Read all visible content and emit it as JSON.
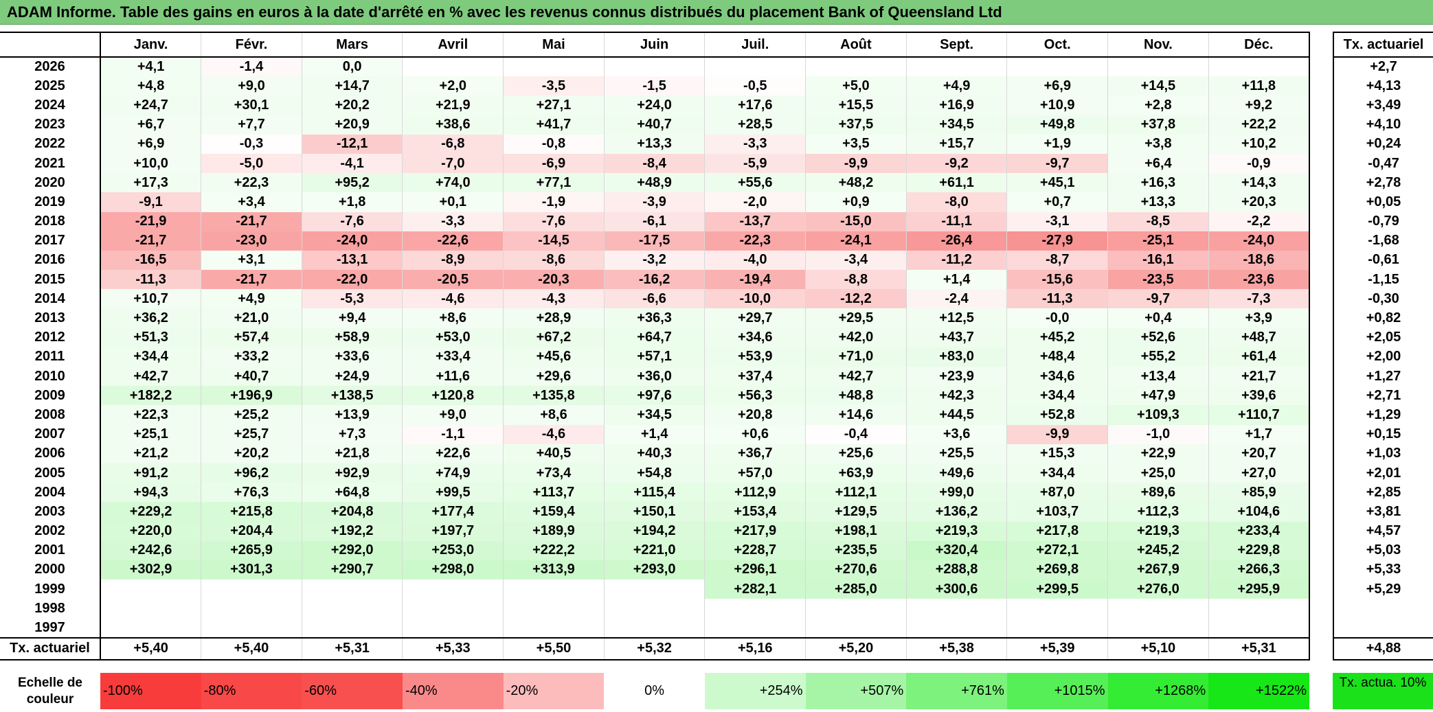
{
  "title": "ADAM Informe. Table des gains en euros à la date d'arrêté en % avec les revenus connus distribués du placement Bank of Queensland Ltd",
  "months": [
    "Janv.",
    "Févr.",
    "Mars",
    "Avril",
    "Mai",
    "Juin",
    "Juil.",
    "Août",
    "Sept.",
    "Oct.",
    "Nov.",
    "Déc."
  ],
  "side_header": "Tx. actuariel",
  "rows": [
    {
      "year": "2026",
      "values": [
        "+4,1",
        "-1,4",
        "0,0",
        "",
        "",
        "",
        "",
        "",
        "",
        "",
        "",
        ""
      ],
      "tx": "+2,7"
    },
    {
      "year": "2025",
      "values": [
        "+4,8",
        "+9,0",
        "+14,7",
        "+2,0",
        "-3,5",
        "-1,5",
        "-0,5",
        "+5,0",
        "+4,9",
        "+6,9",
        "+14,5",
        "+11,8"
      ],
      "tx": "+4,13"
    },
    {
      "year": "2024",
      "values": [
        "+24,7",
        "+30,1",
        "+20,2",
        "+21,9",
        "+27,1",
        "+24,0",
        "+17,6",
        "+15,5",
        "+16,9",
        "+10,9",
        "+2,8",
        "+9,2"
      ],
      "tx": "+3,49"
    },
    {
      "year": "2023",
      "values": [
        "+6,7",
        "+7,7",
        "+20,9",
        "+38,6",
        "+41,7",
        "+40,7",
        "+28,5",
        "+37,5",
        "+34,5",
        "+49,8",
        "+37,8",
        "+22,2"
      ],
      "tx": "+4,10"
    },
    {
      "year": "2022",
      "values": [
        "+6,9",
        "-0,3",
        "-12,1",
        "-6,8",
        "-0,8",
        "+13,3",
        "-3,3",
        "+3,5",
        "+15,7",
        "+1,9",
        "+3,8",
        "+10,2"
      ],
      "tx": "+0,24"
    },
    {
      "year": "2021",
      "values": [
        "+10,0",
        "-5,0",
        "-4,1",
        "-7,0",
        "-6,9",
        "-8,4",
        "-5,9",
        "-9,9",
        "-9,2",
        "-9,7",
        "+6,4",
        "-0,9"
      ],
      "tx": "-0,47"
    },
    {
      "year": "2020",
      "values": [
        "+17,3",
        "+22,3",
        "+95,2",
        "+74,0",
        "+77,1",
        "+48,9",
        "+55,6",
        "+48,2",
        "+61,1",
        "+45,1",
        "+16,3",
        "+14,3"
      ],
      "tx": "+2,78"
    },
    {
      "year": "2019",
      "values": [
        "-9,1",
        "+3,4",
        "+1,8",
        "+0,1",
        "-1,9",
        "-3,9",
        "-2,0",
        "+0,9",
        "-8,0",
        "+0,7",
        "+13,3",
        "+20,3"
      ],
      "tx": "+0,05"
    },
    {
      "year": "2018",
      "values": [
        "-21,9",
        "-21,7",
        "-7,6",
        "-3,3",
        "-7,6",
        "-6,1",
        "-13,7",
        "-15,0",
        "-11,1",
        "-3,1",
        "-8,5",
        "-2,2"
      ],
      "tx": "-0,79"
    },
    {
      "year": "2017",
      "values": [
        "-21,7",
        "-23,0",
        "-24,0",
        "-22,6",
        "-14,5",
        "-17,5",
        "-22,3",
        "-24,1",
        "-26,4",
        "-27,9",
        "-25,1",
        "-24,0"
      ],
      "tx": "-1,68"
    },
    {
      "year": "2016",
      "values": [
        "-16,5",
        "+3,1",
        "-13,1",
        "-8,9",
        "-8,6",
        "-3,2",
        "-4,0",
        "-3,4",
        "-11,2",
        "-8,7",
        "-16,1",
        "-18,6"
      ],
      "tx": "-0,61"
    },
    {
      "year": "2015",
      "values": [
        "-11,3",
        "-21,7",
        "-22,0",
        "-20,5",
        "-20,3",
        "-16,2",
        "-19,4",
        "-8,8",
        "+1,4",
        "-15,6",
        "-23,5",
        "-23,6"
      ],
      "tx": "-1,15"
    },
    {
      "year": "2014",
      "values": [
        "+10,7",
        "+4,9",
        "-5,3",
        "-4,6",
        "-4,3",
        "-6,6",
        "-10,0",
        "-12,2",
        "-2,4",
        "-11,3",
        "-9,7",
        "-7,3"
      ],
      "tx": "-0,30"
    },
    {
      "year": "2013",
      "values": [
        "+36,2",
        "+21,0",
        "+9,4",
        "+8,6",
        "+28,9",
        "+36,3",
        "+29,7",
        "+29,5",
        "+12,5",
        "-0,0",
        "+0,4",
        "+3,9"
      ],
      "tx": "+0,82"
    },
    {
      "year": "2012",
      "values": [
        "+51,3",
        "+57,4",
        "+58,9",
        "+53,0",
        "+67,2",
        "+64,7",
        "+34,6",
        "+42,0",
        "+43,7",
        "+45,2",
        "+52,6",
        "+48,7"
      ],
      "tx": "+2,05"
    },
    {
      "year": "2011",
      "values": [
        "+34,4",
        "+33,2",
        "+33,6",
        "+33,4",
        "+45,6",
        "+57,1",
        "+53,9",
        "+71,0",
        "+83,0",
        "+48,4",
        "+55,2",
        "+61,4"
      ],
      "tx": "+2,00"
    },
    {
      "year": "2010",
      "values": [
        "+42,7",
        "+40,7",
        "+24,9",
        "+11,6",
        "+29,6",
        "+36,0",
        "+37,4",
        "+42,7",
        "+23,9",
        "+34,6",
        "+13,4",
        "+21,7"
      ],
      "tx": "+1,27"
    },
    {
      "year": "2009",
      "values": [
        "+182,2",
        "+196,9",
        "+138,5",
        "+120,8",
        "+135,8",
        "+97,6",
        "+56,3",
        "+48,8",
        "+42,3",
        "+34,4",
        "+47,9",
        "+39,6"
      ],
      "tx": "+2,71"
    },
    {
      "year": "2008",
      "values": [
        "+22,3",
        "+25,2",
        "+13,9",
        "+9,0",
        "+8,6",
        "+34,5",
        "+20,8",
        "+14,6",
        "+44,5",
        "+52,8",
        "+109,3",
        "+110,7"
      ],
      "tx": "+1,29"
    },
    {
      "year": "2007",
      "values": [
        "+25,1",
        "+25,7",
        "+7,3",
        "-1,1",
        "-4,6",
        "+1,4",
        "+0,6",
        "-0,4",
        "+3,6",
        "-9,9",
        "-1,0",
        "+1,7"
      ],
      "tx": "+0,15"
    },
    {
      "year": "2006",
      "values": [
        "+21,2",
        "+20,2",
        "+21,8",
        "+22,6",
        "+40,5",
        "+40,3",
        "+36,7",
        "+25,6",
        "+25,5",
        "+15,3",
        "+22,9",
        "+20,7"
      ],
      "tx": "+1,03"
    },
    {
      "year": "2005",
      "values": [
        "+91,2",
        "+96,2",
        "+92,9",
        "+74,9",
        "+73,4",
        "+54,8",
        "+57,0",
        "+63,9",
        "+49,6",
        "+34,4",
        "+25,0",
        "+27,0"
      ],
      "tx": "+2,01"
    },
    {
      "year": "2004",
      "values": [
        "+94,3",
        "+76,3",
        "+64,8",
        "+99,5",
        "+113,7",
        "+115,4",
        "+112,9",
        "+112,1",
        "+99,0",
        "+87,0",
        "+89,6",
        "+85,9"
      ],
      "tx": "+2,85"
    },
    {
      "year": "2003",
      "values": [
        "+229,2",
        "+215,8",
        "+204,8",
        "+177,4",
        "+159,4",
        "+150,1",
        "+153,4",
        "+129,5",
        "+136,2",
        "+103,7",
        "+112,3",
        "+104,6"
      ],
      "tx": "+3,81"
    },
    {
      "year": "2002",
      "values": [
        "+220,0",
        "+204,4",
        "+192,2",
        "+197,7",
        "+189,9",
        "+194,2",
        "+217,9",
        "+198,1",
        "+219,3",
        "+217,8",
        "+219,3",
        "+233,4"
      ],
      "tx": "+4,57"
    },
    {
      "year": "2001",
      "values": [
        "+242,6",
        "+265,9",
        "+292,0",
        "+253,0",
        "+222,2",
        "+221,0",
        "+228,7",
        "+235,5",
        "+320,4",
        "+272,1",
        "+245,2",
        "+229,8"
      ],
      "tx": "+5,03"
    },
    {
      "year": "2000",
      "values": [
        "+302,9",
        "+301,3",
        "+290,7",
        "+298,0",
        "+313,9",
        "+293,0",
        "+296,1",
        "+270,6",
        "+288,8",
        "+269,8",
        "+267,9",
        "+266,3"
      ],
      "tx": "+5,33"
    },
    {
      "year": "1999",
      "values": [
        "",
        "",
        "",
        "",
        "",
        "",
        "+282,1",
        "+285,0",
        "+300,6",
        "+299,5",
        "+276,0",
        "+295,9"
      ],
      "tx": "+5,29"
    },
    {
      "year": "1998",
      "values": [
        "",
        "",
        "",
        "",
        "",
        "",
        "",
        "",
        "",
        "",
        "",
        ""
      ],
      "tx": ""
    },
    {
      "year": "1997",
      "values": [
        "",
        "",
        "",
        "",
        "",
        "",
        "",
        "",
        "",
        "",
        "",
        ""
      ],
      "tx": ""
    }
  ],
  "totals_label": "Tx. actuariel",
  "totals": [
    "+5,40",
    "+5,40",
    "+5,31",
    "+5,33",
    "+5,50",
    "+5,32",
    "+5,16",
    "+5,20",
    "+5,38",
    "+5,39",
    "+5,10",
    "+5,31"
  ],
  "totals_overall": "+4,88",
  "scale": {
    "label": "Echelle de couleur",
    "steps": [
      {
        "text": "-100%",
        "color": "#f83c3c"
      },
      {
        "text": "-80%",
        "color": "#f84848"
      },
      {
        "text": "-60%",
        "color": "#f84f4f"
      },
      {
        "text": "-40%",
        "color": "#fa8a8a"
      },
      {
        "text": "-20%",
        "color": "#fcbcbc"
      },
      {
        "text": "0%",
        "color": "#ffffff"
      },
      {
        "text": "+254%",
        "color": "#ccfacc"
      },
      {
        "text": "+507%",
        "color": "#a6f5a6"
      },
      {
        "text": "+761%",
        "color": "#7df27d"
      },
      {
        "text": "+1015%",
        "color": "#57ef57"
      },
      {
        "text": "+1268%",
        "color": "#33ec33"
      },
      {
        "text": "+1522%",
        "color": "#17e617"
      }
    ],
    "actuarial_label": "Tx. actua. 10%",
    "actuarial_color": "#1be11b"
  }
}
